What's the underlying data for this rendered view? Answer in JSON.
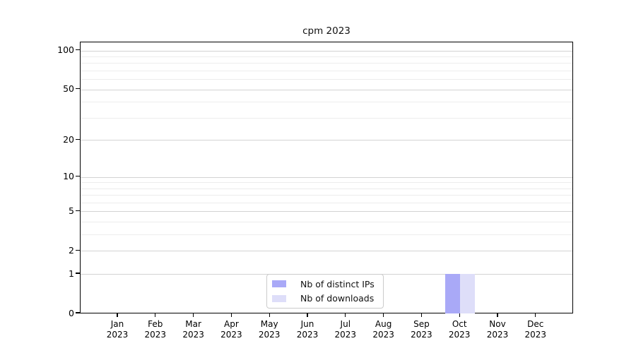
{
  "chart_data": {
    "type": "bar",
    "title": "cpm 2023",
    "x_axis": {
      "months": [
        "Jan",
        "Feb",
        "Mar",
        "Apr",
        "May",
        "Jun",
        "Jul",
        "Aug",
        "Sep",
        "Oct",
        "Nov",
        "Dec"
      ],
      "year": "2023"
    },
    "series": [
      {
        "name": "Nb of distinct IPs",
        "color": "#a9a9f7",
        "values": [
          0,
          0,
          0,
          0,
          0,
          0,
          0,
          0,
          0,
          1,
          0,
          0
        ]
      },
      {
        "name": "Nb of downloads",
        "color": "#dedef9",
        "values": [
          0,
          0,
          0,
          0,
          0,
          0,
          0,
          0,
          0,
          1,
          0,
          0
        ]
      }
    ],
    "y_axis": {
      "scale": "log10(1+y)",
      "tick_labels": [
        0,
        1,
        2,
        5,
        10,
        20,
        50,
        100
      ],
      "minor_gridlines": [
        3,
        4,
        6,
        7,
        8,
        9,
        30,
        40,
        60,
        70,
        80,
        90
      ],
      "ylim": [
        0,
        115
      ]
    },
    "legend": {
      "position": "bottom-center"
    },
    "grid": true,
    "colors": {
      "major_grid": "#d3d3d3",
      "minor_grid": "#ededed",
      "axis": "#000000",
      "legend_border": "#cbcbcb",
      "text": "#000000",
      "background": "#ffffff"
    }
  }
}
